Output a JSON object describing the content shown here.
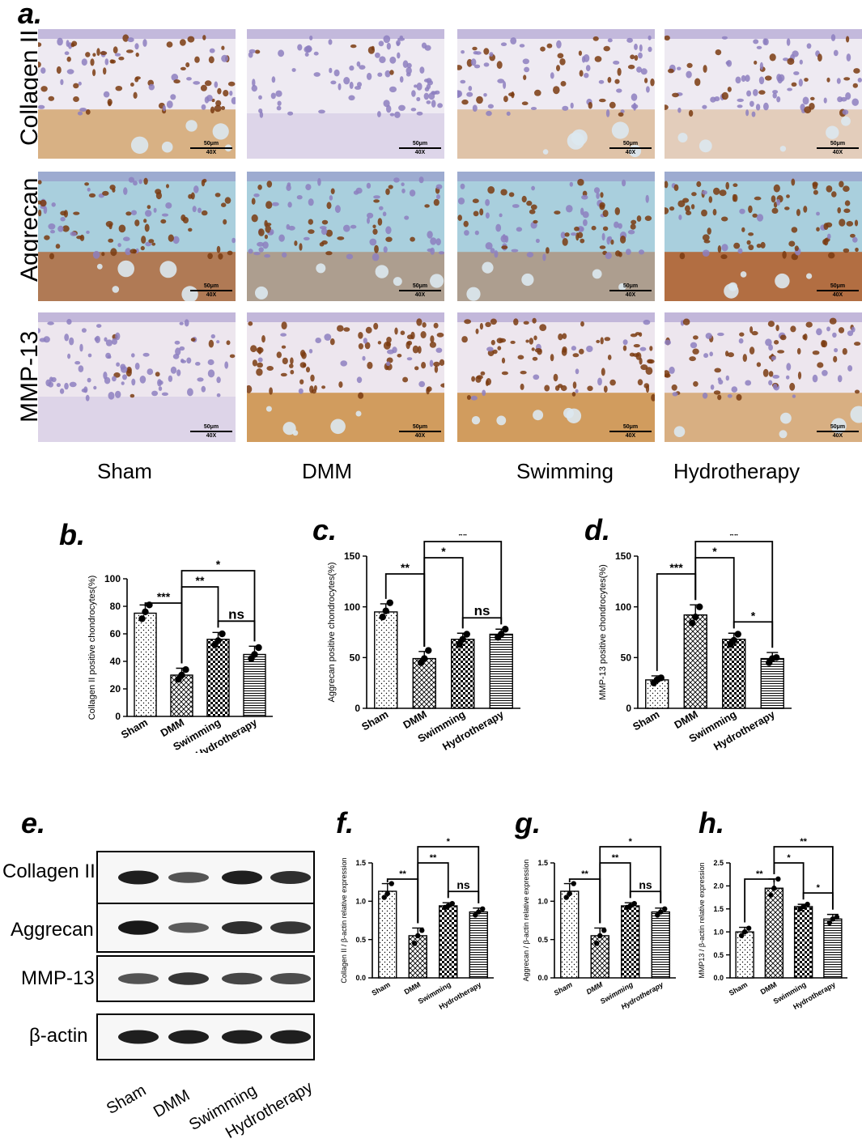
{
  "panel_a": {
    "letter": "a.",
    "rows": [
      "Collagen II",
      "Aggrecan",
      "MMP-13"
    ],
    "columns": [
      "Sham",
      "DMM",
      "Swimming",
      "Hydrotherapy"
    ],
    "scale_text": "50μm",
    "mag_text": "40X",
    "colors": {
      "hematoxylin": "#8d7fc0",
      "dab": "#c97a22",
      "fast_green": "#9ec7d8"
    }
  },
  "panel_letters": {
    "b": "b.",
    "c": "c.",
    "d": "d.",
    "e": "e.",
    "f": "f.",
    "g": "g.",
    "h": "h."
  },
  "western_blot": {
    "bands": [
      "Collagen II",
      "Aggrecan",
      "MMP-13",
      "β-actin"
    ],
    "lanes": [
      "Sham",
      "DMM",
      "Swimming",
      "Hydrotherapy"
    ],
    "intensity": [
      [
        0.9,
        0.55,
        0.9,
        0.8
      ],
      [
        0.95,
        0.5,
        0.8,
        0.75
      ],
      [
        0.55,
        0.75,
        0.65,
        0.6
      ],
      [
        0.9,
        0.9,
        0.9,
        0.9
      ]
    ]
  },
  "chart_data": [
    {
      "id": "b",
      "type": "bar",
      "categories": [
        "Sham",
        "DMM",
        "Swimming",
        "Hydrotherapy"
      ],
      "values": [
        75,
        30,
        56,
        45
      ],
      "errors": [
        6,
        5,
        5,
        6
      ],
      "points": [
        [
          71,
          76,
          81
        ],
        [
          27,
          30,
          34
        ],
        [
          52,
          55,
          60
        ],
        [
          42,
          45,
          50
        ]
      ],
      "ylabel": "Collagen II positive chondrocytes(%)",
      "ylim": [
        0,
        100
      ],
      "yticks": [
        0,
        20,
        40,
        60,
        80,
        100
      ],
      "patterns": [
        "dots",
        "crosshatch",
        "checker",
        "hlines"
      ],
      "brackets": [
        {
          "from": 0,
          "to": 1,
          "label": "***",
          "level": 1
        },
        {
          "from": 1,
          "to": 2,
          "label": "**",
          "level": 2
        },
        {
          "from": 1,
          "to": 3,
          "label": "*",
          "level": 3
        },
        {
          "from": 2,
          "to": 3,
          "label": "ns",
          "level": 0
        }
      ]
    },
    {
      "id": "c",
      "type": "bar",
      "categories": [
        "Sham",
        "DMM",
        "Swimming",
        "Hydrotherapy"
      ],
      "values": [
        95,
        49,
        68,
        73
      ],
      "errors": [
        8,
        7,
        6,
        5
      ],
      "points": [
        [
          90,
          96,
          104
        ],
        [
          45,
          49,
          57
        ],
        [
          63,
          68,
          73
        ],
        [
          70,
          73,
          78
        ]
      ],
      "ylabel": "Aggrecan positive chondrocytes(%)",
      "ylim": [
        0,
        150
      ],
      "yticks": [
        0,
        50,
        100,
        150
      ],
      "patterns": [
        "dots",
        "crosshatch",
        "checker",
        "hlines"
      ],
      "brackets": [
        {
          "from": 0,
          "to": 1,
          "label": "**",
          "level": 1
        },
        {
          "from": 1,
          "to": 2,
          "label": "*",
          "level": 2
        },
        {
          "from": 1,
          "to": 3,
          "label": "**",
          "level": 3
        },
        {
          "from": 2,
          "to": 3,
          "label": "ns",
          "level": 0
        }
      ]
    },
    {
      "id": "d",
      "type": "bar",
      "categories": [
        "Sham",
        "DMM",
        "Swimming",
        "Hydrotherapy"
      ],
      "values": [
        28,
        92,
        68,
        49
      ],
      "errors": [
        4,
        10,
        6,
        6
      ],
      "points": [
        [
          25,
          28,
          30
        ],
        [
          84,
          90,
          100
        ],
        [
          63,
          67,
          73
        ],
        [
          45,
          49,
          50
        ]
      ],
      "ylabel": "MMP-13 positive chondrocytes(%)",
      "ylim": [
        0,
        150
      ],
      "yticks": [
        0,
        50,
        100,
        150
      ],
      "patterns": [
        "dots",
        "crosshatch",
        "checker",
        "hlines"
      ],
      "brackets": [
        {
          "from": 0,
          "to": 1,
          "label": "***",
          "level": 1
        },
        {
          "from": 1,
          "to": 2,
          "label": "*",
          "level": 2
        },
        {
          "from": 1,
          "to": 3,
          "label": "**",
          "level": 3
        },
        {
          "from": 2,
          "to": 3,
          "label": "*",
          "level": 0
        }
      ]
    },
    {
      "id": "f",
      "type": "bar",
      "categories": [
        "Sham",
        "DMM",
        "Swimming",
        "Hydrotherapy"
      ],
      "values": [
        1.13,
        0.55,
        0.94,
        0.86
      ],
      "errors": [
        0.1,
        0.1,
        0.04,
        0.05
      ],
      "points": [
        [
          1.05,
          1.1,
          1.23
        ],
        [
          0.45,
          0.55,
          0.62
        ],
        [
          0.92,
          0.94,
          0.97
        ],
        [
          0.82,
          0.86,
          0.9
        ]
      ],
      "ylabel": "Collagen II / β-actin relative expression",
      "ylim": [
        0,
        1.5
      ],
      "yticks": [
        0.0,
        0.5,
        1.0,
        1.5
      ],
      "ytick_labels": [
        "0.0",
        "0.5",
        "1.0",
        "1.5"
      ],
      "patterns": [
        "dots",
        "crosshatch",
        "checker",
        "hlines"
      ],
      "brackets": [
        {
          "from": 0,
          "to": 1,
          "label": "**",
          "level": 1
        },
        {
          "from": 1,
          "to": 2,
          "label": "**",
          "level": 2
        },
        {
          "from": 1,
          "to": 3,
          "label": "*",
          "level": 3
        },
        {
          "from": 2,
          "to": 3,
          "label": "ns",
          "level": 0
        }
      ]
    },
    {
      "id": "g",
      "type": "bar",
      "categories": [
        "Sham",
        "DMM",
        "Swimming",
        "Hydrotherapy"
      ],
      "values": [
        1.13,
        0.55,
        0.94,
        0.86
      ],
      "errors": [
        0.1,
        0.1,
        0.04,
        0.05
      ],
      "points": [
        [
          1.05,
          1.1,
          1.23
        ],
        [
          0.45,
          0.55,
          0.62
        ],
        [
          0.92,
          0.94,
          0.97
        ],
        [
          0.82,
          0.86,
          0.9
        ]
      ],
      "ylabel": "Aggrecan / β-actin relative expression",
      "ylim": [
        0,
        1.5
      ],
      "yticks": [
        0.0,
        0.5,
        1.0,
        1.5
      ],
      "ytick_labels": [
        "0.0",
        "0.5",
        "1.0",
        "1.5"
      ],
      "patterns": [
        "dots",
        "crosshatch",
        "checker",
        "hlines"
      ],
      "brackets": [
        {
          "from": 0,
          "to": 1,
          "label": "**",
          "level": 1
        },
        {
          "from": 1,
          "to": 2,
          "label": "**",
          "level": 2
        },
        {
          "from": 1,
          "to": 3,
          "label": "*",
          "level": 3
        },
        {
          "from": 2,
          "to": 3,
          "label": "ns",
          "level": 0
        }
      ]
    },
    {
      "id": "h",
      "type": "bar",
      "categories": [
        "Sham",
        "DMM",
        "Swimming",
        "Hydrotherapy"
      ],
      "values": [
        1.0,
        1.95,
        1.55,
        1.28
      ],
      "errors": [
        0.1,
        0.2,
        0.05,
        0.1
      ],
      "points": [
        [
          0.92,
          1.0,
          1.08
        ],
        [
          1.8,
          1.95,
          2.15
        ],
        [
          1.5,
          1.55,
          1.6
        ],
        [
          1.2,
          1.28,
          1.32
        ]
      ],
      "ylabel": "MMP13 / β-actin relative expression",
      "ylim": [
        0,
        2.5
      ],
      "yticks": [
        0.0,
        0.5,
        1.0,
        1.5,
        2.0,
        2.5
      ],
      "ytick_labels": [
        "0.0",
        "0.5",
        "1.0",
        "1.5",
        "2.0",
        "2.5"
      ],
      "patterns": [
        "dots",
        "crosshatch",
        "checker",
        "hlines"
      ],
      "brackets": [
        {
          "from": 0,
          "to": 1,
          "label": "**",
          "level": 1
        },
        {
          "from": 1,
          "to": 2,
          "label": "*",
          "level": 2
        },
        {
          "from": 1,
          "to": 3,
          "label": "**",
          "level": 3
        },
        {
          "from": 2,
          "to": 3,
          "label": "*",
          "level": 0
        }
      ]
    }
  ]
}
